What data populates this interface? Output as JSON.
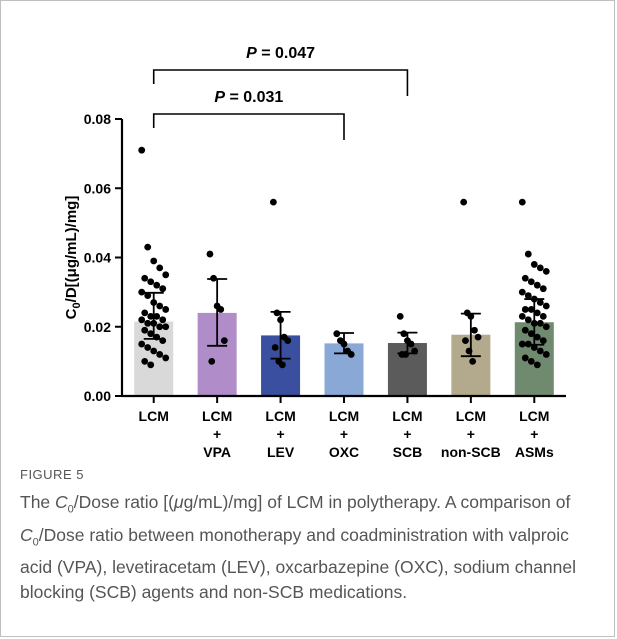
{
  "chart_data": {
    "type": "bar",
    "ylabel_main": "C",
    "ylabel_sub": "0",
    "ylabel_rest": "/D[(μg/mL)/mg]",
    "ylim": [
      0,
      0.08
    ],
    "yticks": [
      "0.00",
      "0.02",
      "0.04",
      "0.06",
      "0.08"
    ],
    "ytick_values": [
      0,
      0.02,
      0.04,
      0.06,
      0.08
    ],
    "grid": false,
    "categories": [
      {
        "line1": "LCM",
        "line2": "",
        "line3": ""
      },
      {
        "line1": "LCM",
        "line2": "+",
        "line3": "VPA"
      },
      {
        "line1": "LCM",
        "line2": "+",
        "line3": "LEV"
      },
      {
        "line1": "LCM",
        "line2": "+",
        "line3": "OXC"
      },
      {
        "line1": "LCM",
        "line2": "+",
        "line3": "SCB"
      },
      {
        "line1": "LCM",
        "line2": "+",
        "line3": "non-SCB"
      },
      {
        "line1": "LCM",
        "line2": "+",
        "line3": "ASMs"
      }
    ],
    "bars": [
      {
        "mean": 0.0215,
        "err_high": 0.0298,
        "err_low": 0.0165,
        "color": "#d9d9d9",
        "points": [
          0.071,
          0.043,
          0.039,
          0.037,
          0.035,
          0.034,
          0.033,
          0.032,
          0.031,
          0.03,
          0.029,
          0.027,
          0.026,
          0.025,
          0.024,
          0.023,
          0.023,
          0.022,
          0.022,
          0.021,
          0.021,
          0.02,
          0.02,
          0.019,
          0.018,
          0.017,
          0.016,
          0.015,
          0.014,
          0.013,
          0.012,
          0.011,
          0.01,
          0.009
        ]
      },
      {
        "mean": 0.024,
        "err_high": 0.0338,
        "err_low": 0.0145,
        "color": "#b08cc8",
        "points": [
          0.041,
          0.034,
          0.026,
          0.025,
          0.016,
          0.01
        ]
      },
      {
        "mean": 0.0175,
        "err_high": 0.0243,
        "err_low": 0.0108,
        "color": "#3a4f9f",
        "points": [
          0.056,
          0.024,
          0.022,
          0.017,
          0.016,
          0.014,
          0.01,
          0.009
        ]
      },
      {
        "mean": 0.0152,
        "err_high": 0.0182,
        "err_low": 0.0123,
        "color": "#8aa8d6",
        "points": [
          0.018,
          0.016,
          0.015,
          0.013,
          0.012
        ]
      },
      {
        "mean": 0.0153,
        "err_high": 0.0183,
        "err_low": 0.0123,
        "color": "#5b5b5b",
        "points": [
          0.023,
          0.018,
          0.016,
          0.015,
          0.013,
          0.012,
          0.012
        ]
      },
      {
        "mean": 0.0177,
        "err_high": 0.0238,
        "err_low": 0.0115,
        "color": "#b3a98c",
        "points": [
          0.056,
          0.024,
          0.023,
          0.019,
          0.017,
          0.016,
          0.013,
          0.01
        ]
      },
      {
        "mean": 0.0213,
        "err_high": 0.028,
        "err_low": 0.0148,
        "color": "#6f8a6f",
        "points": [
          0.056,
          0.041,
          0.038,
          0.037,
          0.036,
          0.034,
          0.033,
          0.032,
          0.031,
          0.03,
          0.029,
          0.028,
          0.027,
          0.026,
          0.025,
          0.025,
          0.024,
          0.023,
          0.023,
          0.022,
          0.021,
          0.021,
          0.02,
          0.019,
          0.018,
          0.017,
          0.016,
          0.015,
          0.015,
          0.014,
          0.013,
          0.012,
          0.011,
          0.01,
          0.009
        ]
      }
    ],
    "annotations": [
      {
        "label_prefix": "P",
        "label_value": " = 0.031",
        "from": 0,
        "to": 3
      },
      {
        "label_prefix": "P",
        "label_value": " = 0.047",
        "from": 0,
        "to": 4
      }
    ]
  },
  "figure": {
    "label": "FIGURE 5",
    "caption_pre": "The ",
    "caption_c": "C",
    "caption_sub": "0",
    "caption_1": "/Dose ratio [(",
    "caption_mu": "μ",
    "caption_2": "g/mL)/mg] of LCM in polytherapy. A comparison of ",
    "caption_c2": "C",
    "caption_sub2": "0",
    "caption_3": "/Dose ratio between monotherapy and coadministration with valproic acid (VPA), levetiracetam (LEV), oxcarbazepine (OXC), sodium channel blocking (SCB) agents and non-SCB medications."
  }
}
